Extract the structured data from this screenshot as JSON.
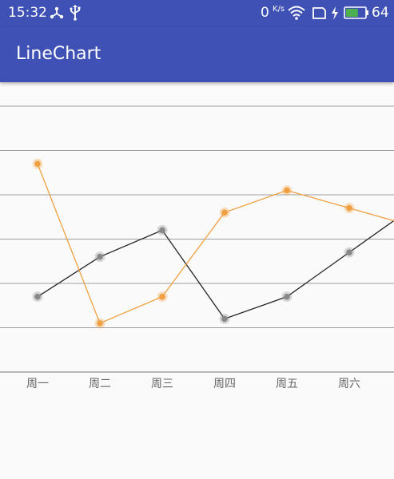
{
  "status_bar": {
    "time": "15:32",
    "network_speed": "0",
    "network_unit": "K/s",
    "battery_level": "64",
    "battery_fraction": 0.64,
    "icons": [
      "usb-connection-icon",
      "usb-debug-icon",
      "wifi-icon",
      "sim-card-icon",
      "charging-bolt-icon",
      "battery-icon"
    ]
  },
  "app_bar": {
    "title": "LineChart",
    "color": "#3f51b5"
  },
  "chart_data": {
    "type": "line",
    "categories": [
      "周一",
      "周二",
      "周三",
      "周四",
      "周五",
      "周六"
    ],
    "grid": true,
    "series": [
      {
        "values": [
          17,
          26,
          32,
          12,
          17,
          27
        ],
        "color": "#222222",
        "point_color": "#888888"
      },
      {
        "values": [
          47,
          11,
          17,
          36,
          41,
          37
        ],
        "color": "#f0a040",
        "point_color": "#f0a040"
      }
    ]
  }
}
